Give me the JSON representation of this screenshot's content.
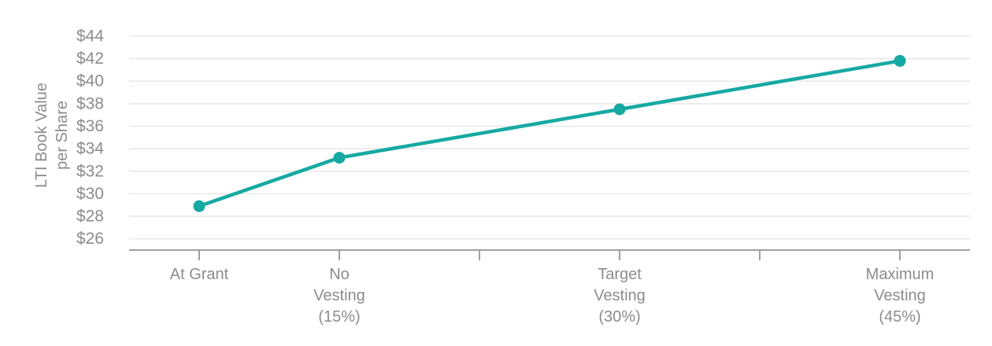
{
  "chart_data": {
    "type": "line",
    "title": "",
    "ylabel_lines": [
      "LTI Book Value",
      "per Share"
    ],
    "series": [
      {
        "name": "LTI Book Value per Share",
        "values": [
          28.9,
          33.2,
          37.5,
          41.8
        ]
      }
    ],
    "categories": [
      {
        "label": "At Grant",
        "lines": [
          "At Grant"
        ],
        "slot": 0
      },
      {
        "label": "No Vesting (15%)",
        "lines": [
          "No",
          "Vesting",
          "(15%)"
        ],
        "slot": 1
      },
      {
        "label": "Target Vesting (30%)",
        "lines": [
          "Target",
          "Vesting",
          "(30%)"
        ],
        "slot": 3
      },
      {
        "label": "Maximum Vesting (45%)",
        "lines": [
          "Maximum",
          "Vesting",
          "(45%)"
        ],
        "slot": 5
      }
    ],
    "n_slots": 6,
    "x_axis": {
      "tick_slots": [
        0,
        1,
        2,
        3,
        4,
        5
      ]
    },
    "y_axis": {
      "tick_labels": [
        "$26",
        "$28",
        "$30",
        "$32",
        "$34",
        "$36",
        "$38",
        "$40",
        "$42",
        "$44"
      ],
      "tick_values": [
        26,
        28,
        30,
        32,
        34,
        36,
        38,
        40,
        42,
        44
      ],
      "axis_min": 25,
      "unit_prefix": "$"
    },
    "legend": {
      "visible": false
    },
    "grid": "horizontal",
    "colors": {
      "line": "#16a9a2",
      "marker": "#16a9a2",
      "text": "#8c8c8c",
      "grid": "#e7e7e7",
      "axis": "#a0a0a0"
    }
  }
}
